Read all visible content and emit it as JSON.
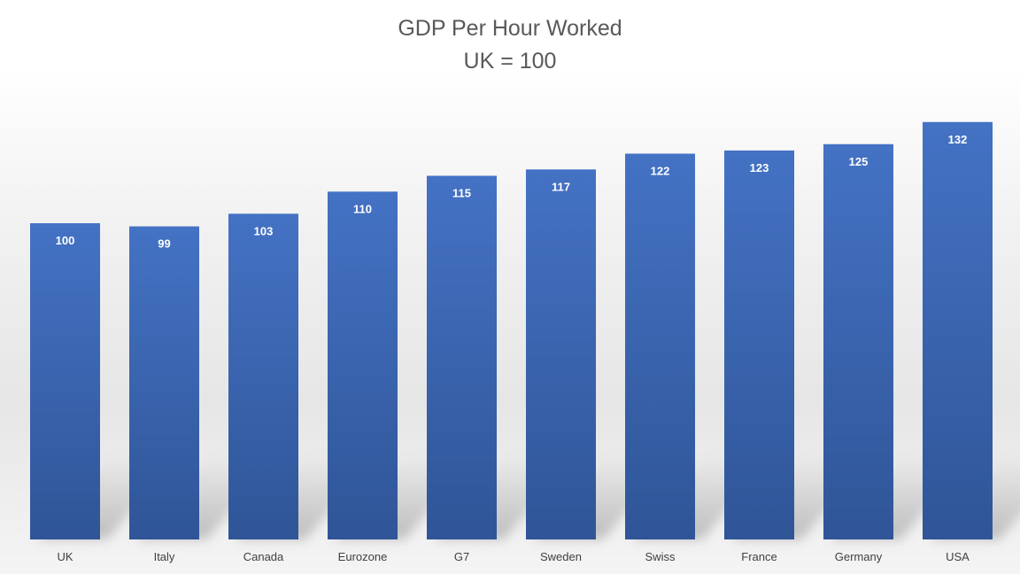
{
  "chart_data": {
    "type": "bar",
    "title": "GDP Per Hour Worked",
    "subtitle": "UK = 100",
    "categories": [
      "UK",
      "Italy",
      "Canada",
      "Eurozone",
      "G7",
      "Sweden",
      "Swiss",
      "France",
      "Germany",
      "USA"
    ],
    "values": [
      100,
      99,
      103,
      110,
      115,
      117,
      122,
      123,
      125,
      132
    ],
    "xlabel": "",
    "ylabel": "",
    "grid": false,
    "legend": "none",
    "data_labels": true,
    "bar_color_top": "#4472c4",
    "bar_color_bottom": "#2f5597",
    "label_color": "#ffffff",
    "axis_text_color": "#404040"
  }
}
